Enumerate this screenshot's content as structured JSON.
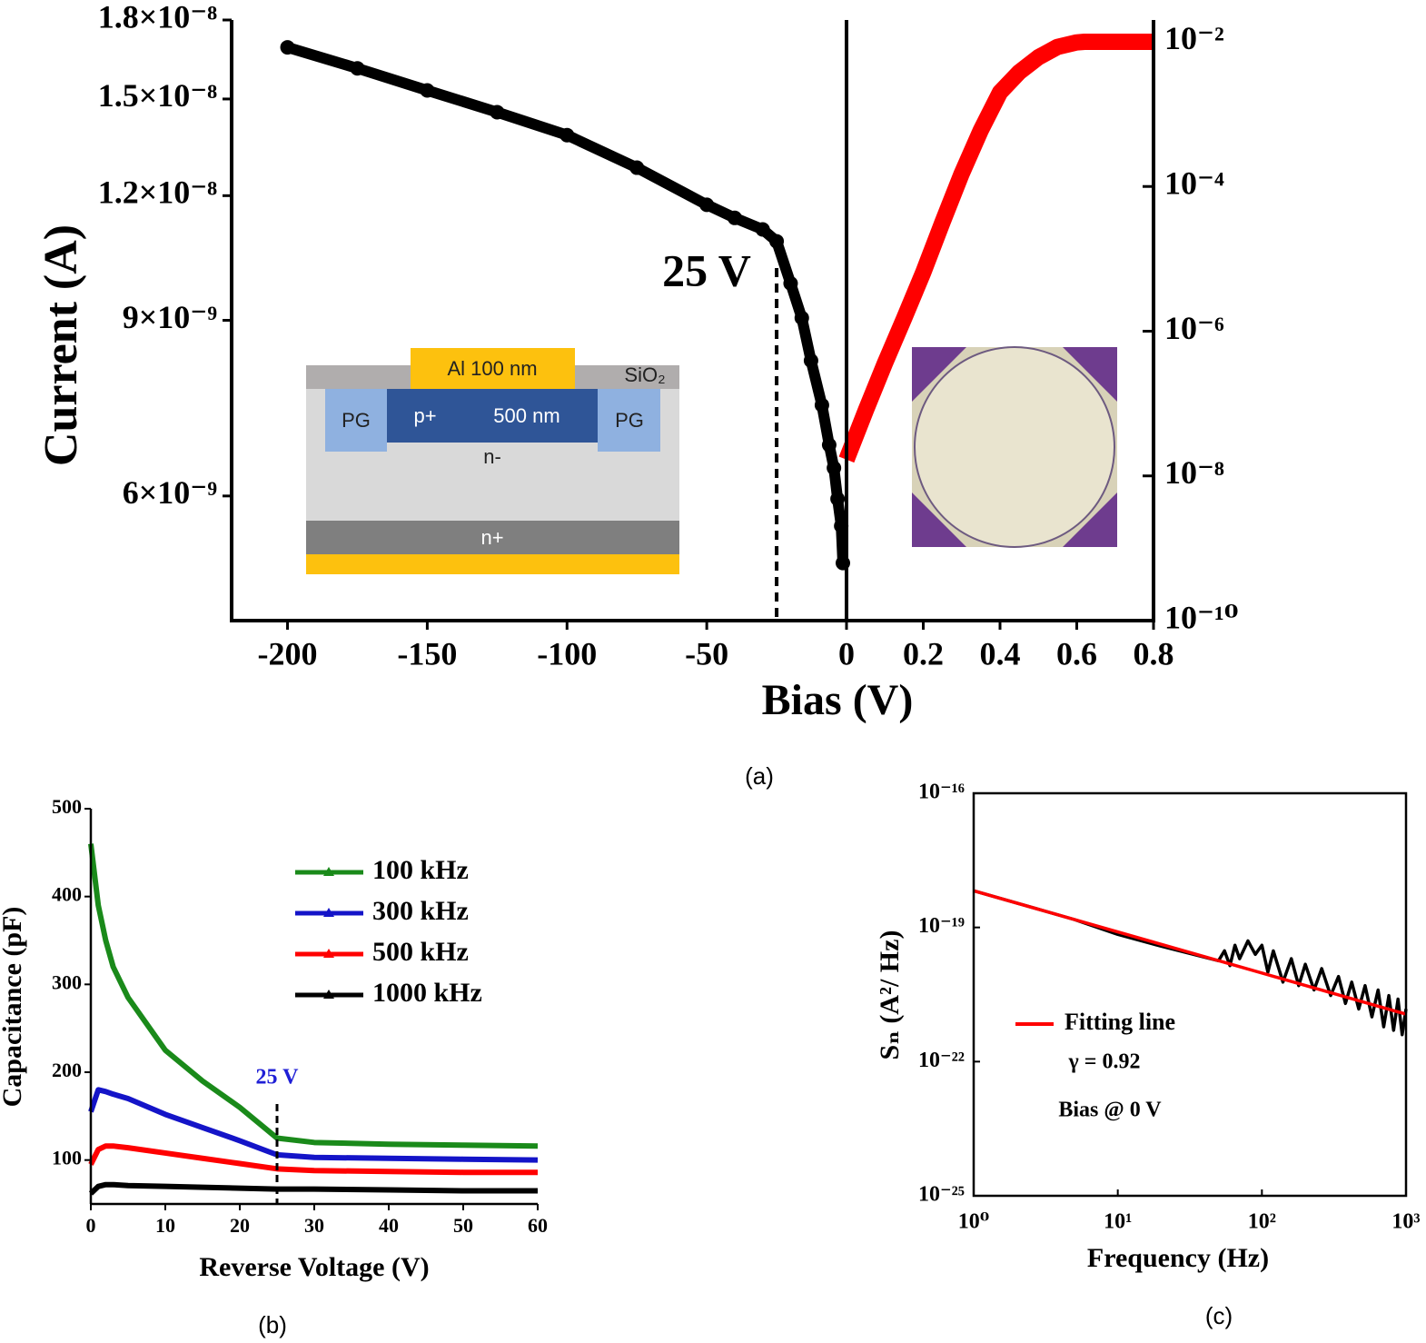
{
  "chart_data": [
    {
      "type": "scatter",
      "ylabel": "Current (A)",
      "xlabel": "Bias (V)",
      "caption": "(a)",
      "annotation": {
        "text": "25 V",
        "x": -25
      },
      "cross_section": {
        "metal": "Al  100 nm",
        "oxide": "SiO₂",
        "guard": "PG",
        "implant": "p+",
        "depth": "500 nm",
        "bulk": "n-",
        "back": "n+"
      },
      "panels": [
        {
          "xlim": [
            -220,
            0
          ],
          "xticks": [
            -200,
            -150,
            -100,
            -50
          ],
          "yscale": "log",
          "ylim": [
            4.5e-09,
            1.8e-08
          ],
          "yticks": [
            {
              "value": 1.8e-08,
              "label": "1.8×10⁻⁸"
            },
            {
              "value": 1.5e-08,
              "label": "1.5×10⁻⁸"
            },
            {
              "value": 1.2e-08,
              "label": "1.2×10⁻⁸"
            },
            {
              "value": 9e-09,
              "label": "9×10⁻⁹"
            },
            {
              "value": 6e-09,
              "label": "6×10⁻⁹"
            }
          ],
          "series": [
            {
              "color": "#000000",
              "x": [
                -200,
                -175,
                -150,
                -125,
                -100,
                -75,
                -50,
                -40,
                -30,
                -25,
                -20,
                -16,
                -12.7,
                -8.8,
                -6.2,
                -4.5,
                -3.2,
                -1.9,
                -1.3
              ],
              "values": [
                1.69e-08,
                1.61e-08,
                1.53e-08,
                1.455e-08,
                1.38e-08,
                1.28e-08,
                1.175e-08,
                1.14e-08,
                1.11e-08,
                1.08e-08,
                9.8e-09,
                9.05e-09,
                8.2e-09,
                7.4e-09,
                6.75e-09,
                6.4e-09,
                5.96e-09,
                5.6e-09,
                5.14e-09
              ]
            }
          ]
        },
        {
          "xlim": [
            0,
            0.8
          ],
          "xticks": [
            0,
            0.2,
            0.4,
            0.6,
            0.8
          ],
          "yscale": "log",
          "ylim": [
            1e-10,
            0.02
          ],
          "yticks": [
            {
              "value": 0.01,
              "label": "10⁻²"
            },
            {
              "value": 0.0001,
              "label": "10⁻⁴"
            },
            {
              "value": 1e-06,
              "label": "10⁻⁶"
            },
            {
              "value": 1e-08,
              "label": "10⁻⁸"
            },
            {
              "value": 1e-10,
              "label": "10⁻¹⁰"
            }
          ],
          "series": [
            {
              "color": "#ff0000",
              "x": [
                0,
                0.05,
                0.1,
                0.15,
                0.2,
                0.25,
                0.3,
                0.35,
                0.4,
                0.45,
                0.5,
                0.55,
                0.6,
                0.62,
                0.7,
                0.8
              ],
              "values": [
                1.68e-08,
                8e-08,
                3.6e-07,
                1.5e-06,
                6.5e-06,
                3.2e-05,
                0.00015,
                0.0006,
                0.002,
                0.0038,
                0.0061,
                0.0085,
                0.0098,
                0.01,
                0.01,
                0.01
              ]
            }
          ]
        }
      ]
    },
    {
      "type": "line",
      "ylabel": "Capacitance (pF)",
      "xlabel": "Reverse Voltage (V)",
      "caption": "(b)",
      "annotation": {
        "text": "25 V",
        "x": 25,
        "color": "#1f1fd6"
      },
      "xlim": [
        0,
        60
      ],
      "xticks": [
        0,
        10,
        20,
        30,
        40,
        50,
        60
      ],
      "ylim": [
        50,
        500
      ],
      "yticks": [
        100,
        200,
        300,
        400,
        500
      ],
      "x": [
        0,
        1,
        2,
        3,
        5,
        10,
        15,
        20,
        25,
        30,
        40,
        50,
        60
      ],
      "series": [
        {
          "name": "100 kHz",
          "color": "#1a8a1a",
          "values": [
            460,
            390,
            350,
            320,
            285,
            225,
            190,
            160,
            125,
            120,
            118,
            117,
            116
          ]
        },
        {
          "name": "300 kHz",
          "color": "#1414c8",
          "values": [
            155,
            180,
            178,
            175,
            170,
            152,
            137,
            122,
            106,
            103,
            102,
            101,
            100
          ]
        },
        {
          "name": "500 kHz",
          "color": "#ff0000",
          "values": [
            95,
            112,
            116,
            116,
            114,
            108,
            102,
            96,
            90,
            88,
            87,
            86,
            86
          ]
        },
        {
          "name": "1000 kHz",
          "color": "#000000",
          "values": [
            62,
            70,
            72,
            72,
            71,
            70,
            69,
            68,
            67,
            67,
            66,
            65,
            65
          ]
        }
      ]
    },
    {
      "type": "line",
      "ylabel": "Sₙ (A²/ Hz)",
      "xlabel": "Frequency (Hz)",
      "caption": "(c)",
      "xscale": "log",
      "yscale": "log",
      "xlim": [
        1,
        1000
      ],
      "ylim": [
        1e-25,
        1e-16
      ],
      "xticks": [
        {
          "value": 1,
          "label": "10⁰"
        },
        {
          "value": 10,
          "label": "10¹"
        },
        {
          "value": 100,
          "label": "10²"
        },
        {
          "value": 1000,
          "label": "10³"
        }
      ],
      "yticks": [
        {
          "value": 1e-16,
          "label": "10⁻¹⁶"
        },
        {
          "value": 1e-19,
          "label": "10⁻¹⁹"
        },
        {
          "value": 1e-22,
          "label": "10⁻²²"
        },
        {
          "value": 1e-25,
          "label": "10⁻²⁵"
        }
      ],
      "notes": [
        "γ = 0.92",
        "Bias @ 0 V"
      ],
      "series": [
        {
          "color": "#000000",
          "x": [
            1,
            2,
            5,
            10,
            20,
            50,
            55,
            60,
            65,
            70,
            80,
            90,
            100,
            110,
            120,
            140,
            160,
            180,
            200,
            230,
            260,
            300,
            340,
            380,
            420,
            470,
            520,
            580,
            640,
            700,
            760,
            820,
            880,
            940,
            1000
          ],
          "values": [
            6.6e-19,
            3.5e-19,
            1.5e-19,
            7e-20,
            3.8e-20,
            1.8e-20,
            3e-20,
            1.4e-20,
            4e-20,
            2e-20,
            5e-20,
            2.5e-20,
            4e-20,
            1e-20,
            3e-20,
            6e-21,
            2e-20,
            5e-21,
            1.5e-20,
            4e-21,
            1.2e-20,
            3e-21,
            8e-21,
            2e-21,
            6e-21,
            1.5e-21,
            5e-21,
            1e-21,
            4e-21,
            6e-22,
            3e-21,
            5e-22,
            2.5e-21,
            4e-22,
            1.5e-21
          ]
        },
        {
          "name": "Fitting line",
          "color": "#ff0000",
          "x": [
            1,
            1000
          ],
          "values": [
            6.6e-19,
            1.15e-21
          ]
        }
      ]
    }
  ]
}
